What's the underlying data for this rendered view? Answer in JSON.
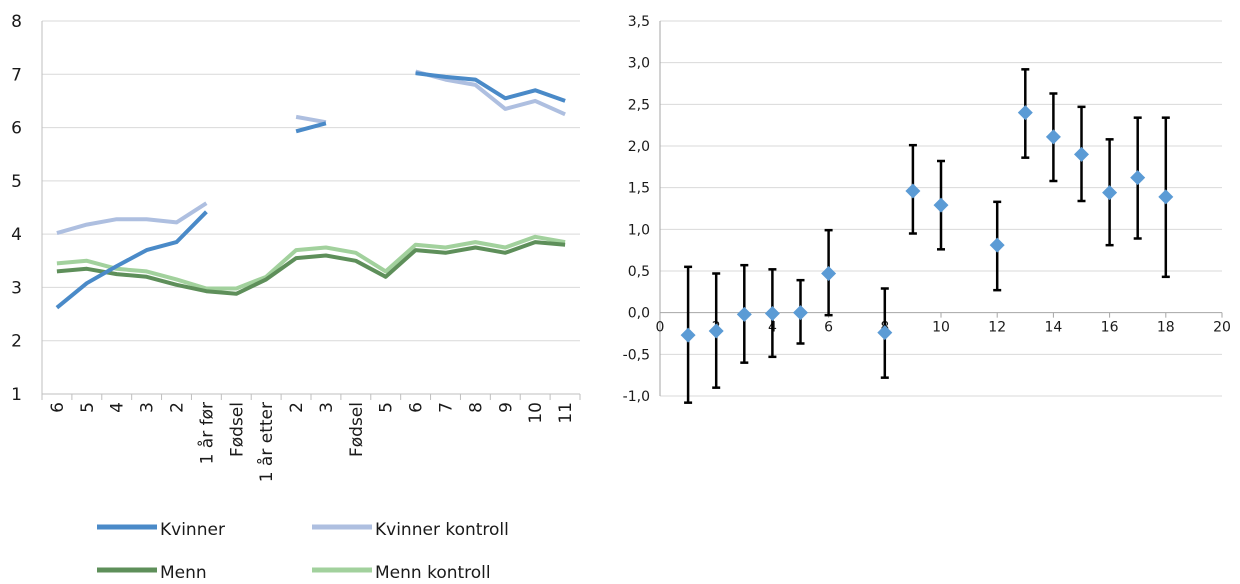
{
  "chart_data": [
    {
      "type": "line",
      "categories": [
        "6",
        "5",
        "4",
        "3",
        "2",
        "1 år før",
        "Fødsel",
        "1 år etter",
        "2",
        "3",
        "Fødsel",
        "5",
        "6",
        "7",
        "8",
        "9",
        "10",
        "11"
      ],
      "ylim": [
        1,
        8
      ],
      "yticks": [
        "1",
        "2",
        "3",
        "4",
        "5",
        "6",
        "7",
        "8"
      ],
      "grid": "horizontal",
      "legend_position": "bottom",
      "series": [
        {
          "name": "Kvinner",
          "color": "#4a8ac8",
          "values": [
            2.62,
            3.08,
            3.4,
            3.7,
            3.85,
            4.42,
            null,
            null,
            5.93,
            6.08,
            null,
            null,
            7.02,
            6.95,
            6.9,
            6.55,
            6.7,
            6.5
          ]
        },
        {
          "name": "Kvinner kontroll",
          "color": "#aebfe0",
          "values": [
            4.02,
            4.18,
            4.28,
            4.28,
            4.22,
            4.58,
            null,
            null,
            6.2,
            6.1,
            null,
            null,
            7.05,
            6.9,
            6.8,
            6.35,
            6.5,
            6.25
          ]
        },
        {
          "name": "Menn",
          "color": "#5e8f5a",
          "values": [
            3.3,
            3.35,
            3.25,
            3.2,
            3.05,
            2.93,
            2.88,
            3.15,
            3.55,
            3.6,
            3.5,
            3.2,
            3.7,
            3.65,
            3.75,
            3.65,
            3.85,
            3.8
          ]
        },
        {
          "name": "Menn kontroll",
          "color": "#a2d19d",
          "values": [
            3.45,
            3.5,
            3.35,
            3.3,
            3.15,
            2.98,
            2.98,
            3.2,
            3.7,
            3.75,
            3.65,
            3.3,
            3.8,
            3.75,
            3.85,
            3.75,
            3.95,
            3.85
          ]
        }
      ]
    },
    {
      "type": "scatter",
      "xlim": [
        0,
        20
      ],
      "ylim": [
        -1.0,
        3.5
      ],
      "xticks": [
        "0",
        "2",
        "4",
        "6",
        "8",
        "10",
        "12",
        "14",
        "16",
        "18",
        "20"
      ],
      "yticks": [
        "-1,0",
        "-0,5",
        "0,0",
        "0,5",
        "1,0",
        "1,5",
        "2,0",
        "2,5",
        "3,0",
        "3,5"
      ],
      "grid": "horizontal",
      "marker_color": "#5b9bd5",
      "points": [
        {
          "x": 1,
          "y": -0.27,
          "low": -1.08,
          "high": 0.55
        },
        {
          "x": 2,
          "y": -0.22,
          "low": -0.9,
          "high": 0.47
        },
        {
          "x": 3,
          "y": -0.02,
          "low": -0.6,
          "high": 0.57
        },
        {
          "x": 4,
          "y": -0.01,
          "low": -0.53,
          "high": 0.52
        },
        {
          "x": 5,
          "y": 0.0,
          "low": -0.37,
          "high": 0.39
        },
        {
          "x": 6,
          "y": 0.47,
          "low": -0.03,
          "high": 0.99
        },
        {
          "x": 8,
          "y": -0.24,
          "low": -0.78,
          "high": 0.29
        },
        {
          "x": 9,
          "y": 1.46,
          "low": 0.95,
          "high": 2.01
        },
        {
          "x": 10,
          "y": 1.29,
          "low": 0.76,
          "high": 1.82
        },
        {
          "x": 12,
          "y": 0.81,
          "low": 0.27,
          "high": 1.33
        },
        {
          "x": 13,
          "y": 2.4,
          "low": 1.86,
          "high": 2.92
        },
        {
          "x": 14,
          "y": 2.11,
          "low": 1.58,
          "high": 2.63
        },
        {
          "x": 15,
          "y": 1.9,
          "low": 1.34,
          "high": 2.47
        },
        {
          "x": 16,
          "y": 1.44,
          "low": 0.81,
          "high": 2.08
        },
        {
          "x": 17,
          "y": 1.62,
          "low": 0.89,
          "high": 2.34
        },
        {
          "x": 18,
          "y": 1.39,
          "low": 0.43,
          "high": 2.34
        }
      ]
    }
  ]
}
